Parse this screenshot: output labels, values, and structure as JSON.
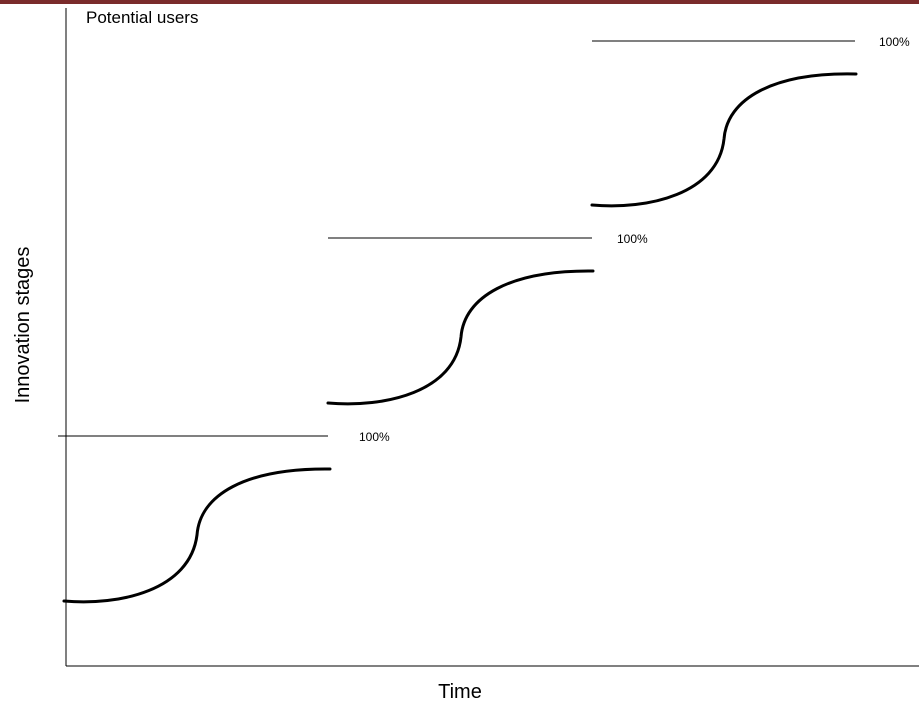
{
  "labels": {
    "top_y_label": "Potential users",
    "y_axis_title": "Innovation stages",
    "x_axis_title": "Time"
  },
  "stages": [
    {
      "ceiling_label": "100%"
    },
    {
      "ceiling_label": "100%"
    },
    {
      "ceiling_label": "100%"
    }
  ],
  "colors": {
    "top_band": "#7a2b2b",
    "line": "#000000"
  }
}
